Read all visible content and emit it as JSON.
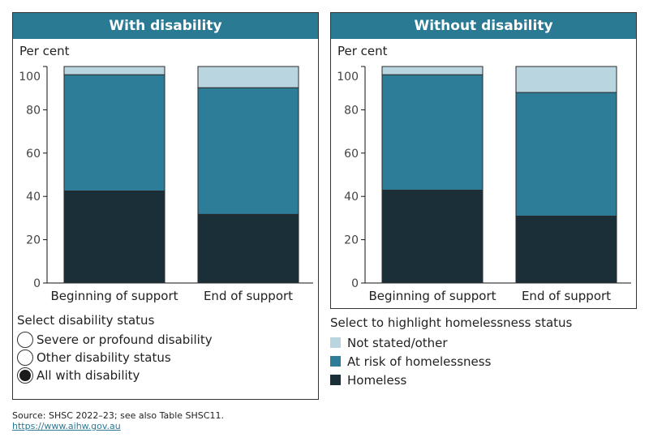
{
  "colors": {
    "homeless": "#1b2f38",
    "at_risk": "#2d7d99",
    "not_stated": "#b9d6e0",
    "header": "#2b7a94"
  },
  "chart_data": [
    {
      "type": "bar",
      "stacked": true,
      "title": "With disability",
      "ylabel": "Per cent",
      "ylim": [
        0,
        100
      ],
      "yticks": [
        0,
        20,
        40,
        60,
        80,
        100
      ],
      "categories": [
        "Beginning of support",
        "End of support"
      ],
      "series": [
        {
          "name": "Homeless",
          "values": [
            42.5,
            31.7
          ]
        },
        {
          "name": "At risk of homelessness",
          "values": [
            53.7,
            58.5
          ]
        },
        {
          "name": "Not stated/other",
          "values": [
            3.8,
            9.8
          ]
        }
      ]
    },
    {
      "type": "bar",
      "stacked": true,
      "title": "Without disability",
      "ylabel": "Per cent",
      "ylim": [
        0,
        100
      ],
      "yticks": [
        0,
        20,
        40,
        60,
        80,
        100
      ],
      "categories": [
        "Beginning of support",
        "End of support"
      ],
      "series": [
        {
          "name": "Homeless",
          "values": [
            42.9,
            30.9
          ]
        },
        {
          "name": "At risk of homelessness",
          "values": [
            53.3,
            57.1
          ]
        },
        {
          "name": "Not stated/other",
          "values": [
            3.8,
            12.0
          ]
        }
      ]
    }
  ],
  "disability_filter": {
    "title": "Select disability status",
    "options": [
      {
        "label": "Severe or profound disability",
        "selected": false
      },
      {
        "label": "Other disability status",
        "selected": false
      },
      {
        "label": "All with disability",
        "selected": true
      }
    ]
  },
  "legend": {
    "title": "Select to highlight homelessness status",
    "items": [
      "Not stated/other",
      "At risk of homelessness",
      "Homeless"
    ]
  },
  "source": {
    "text": "Source: SHSC 2022–23; see also Table SHSC11.",
    "link": "https://www.aihw.gov.au"
  }
}
